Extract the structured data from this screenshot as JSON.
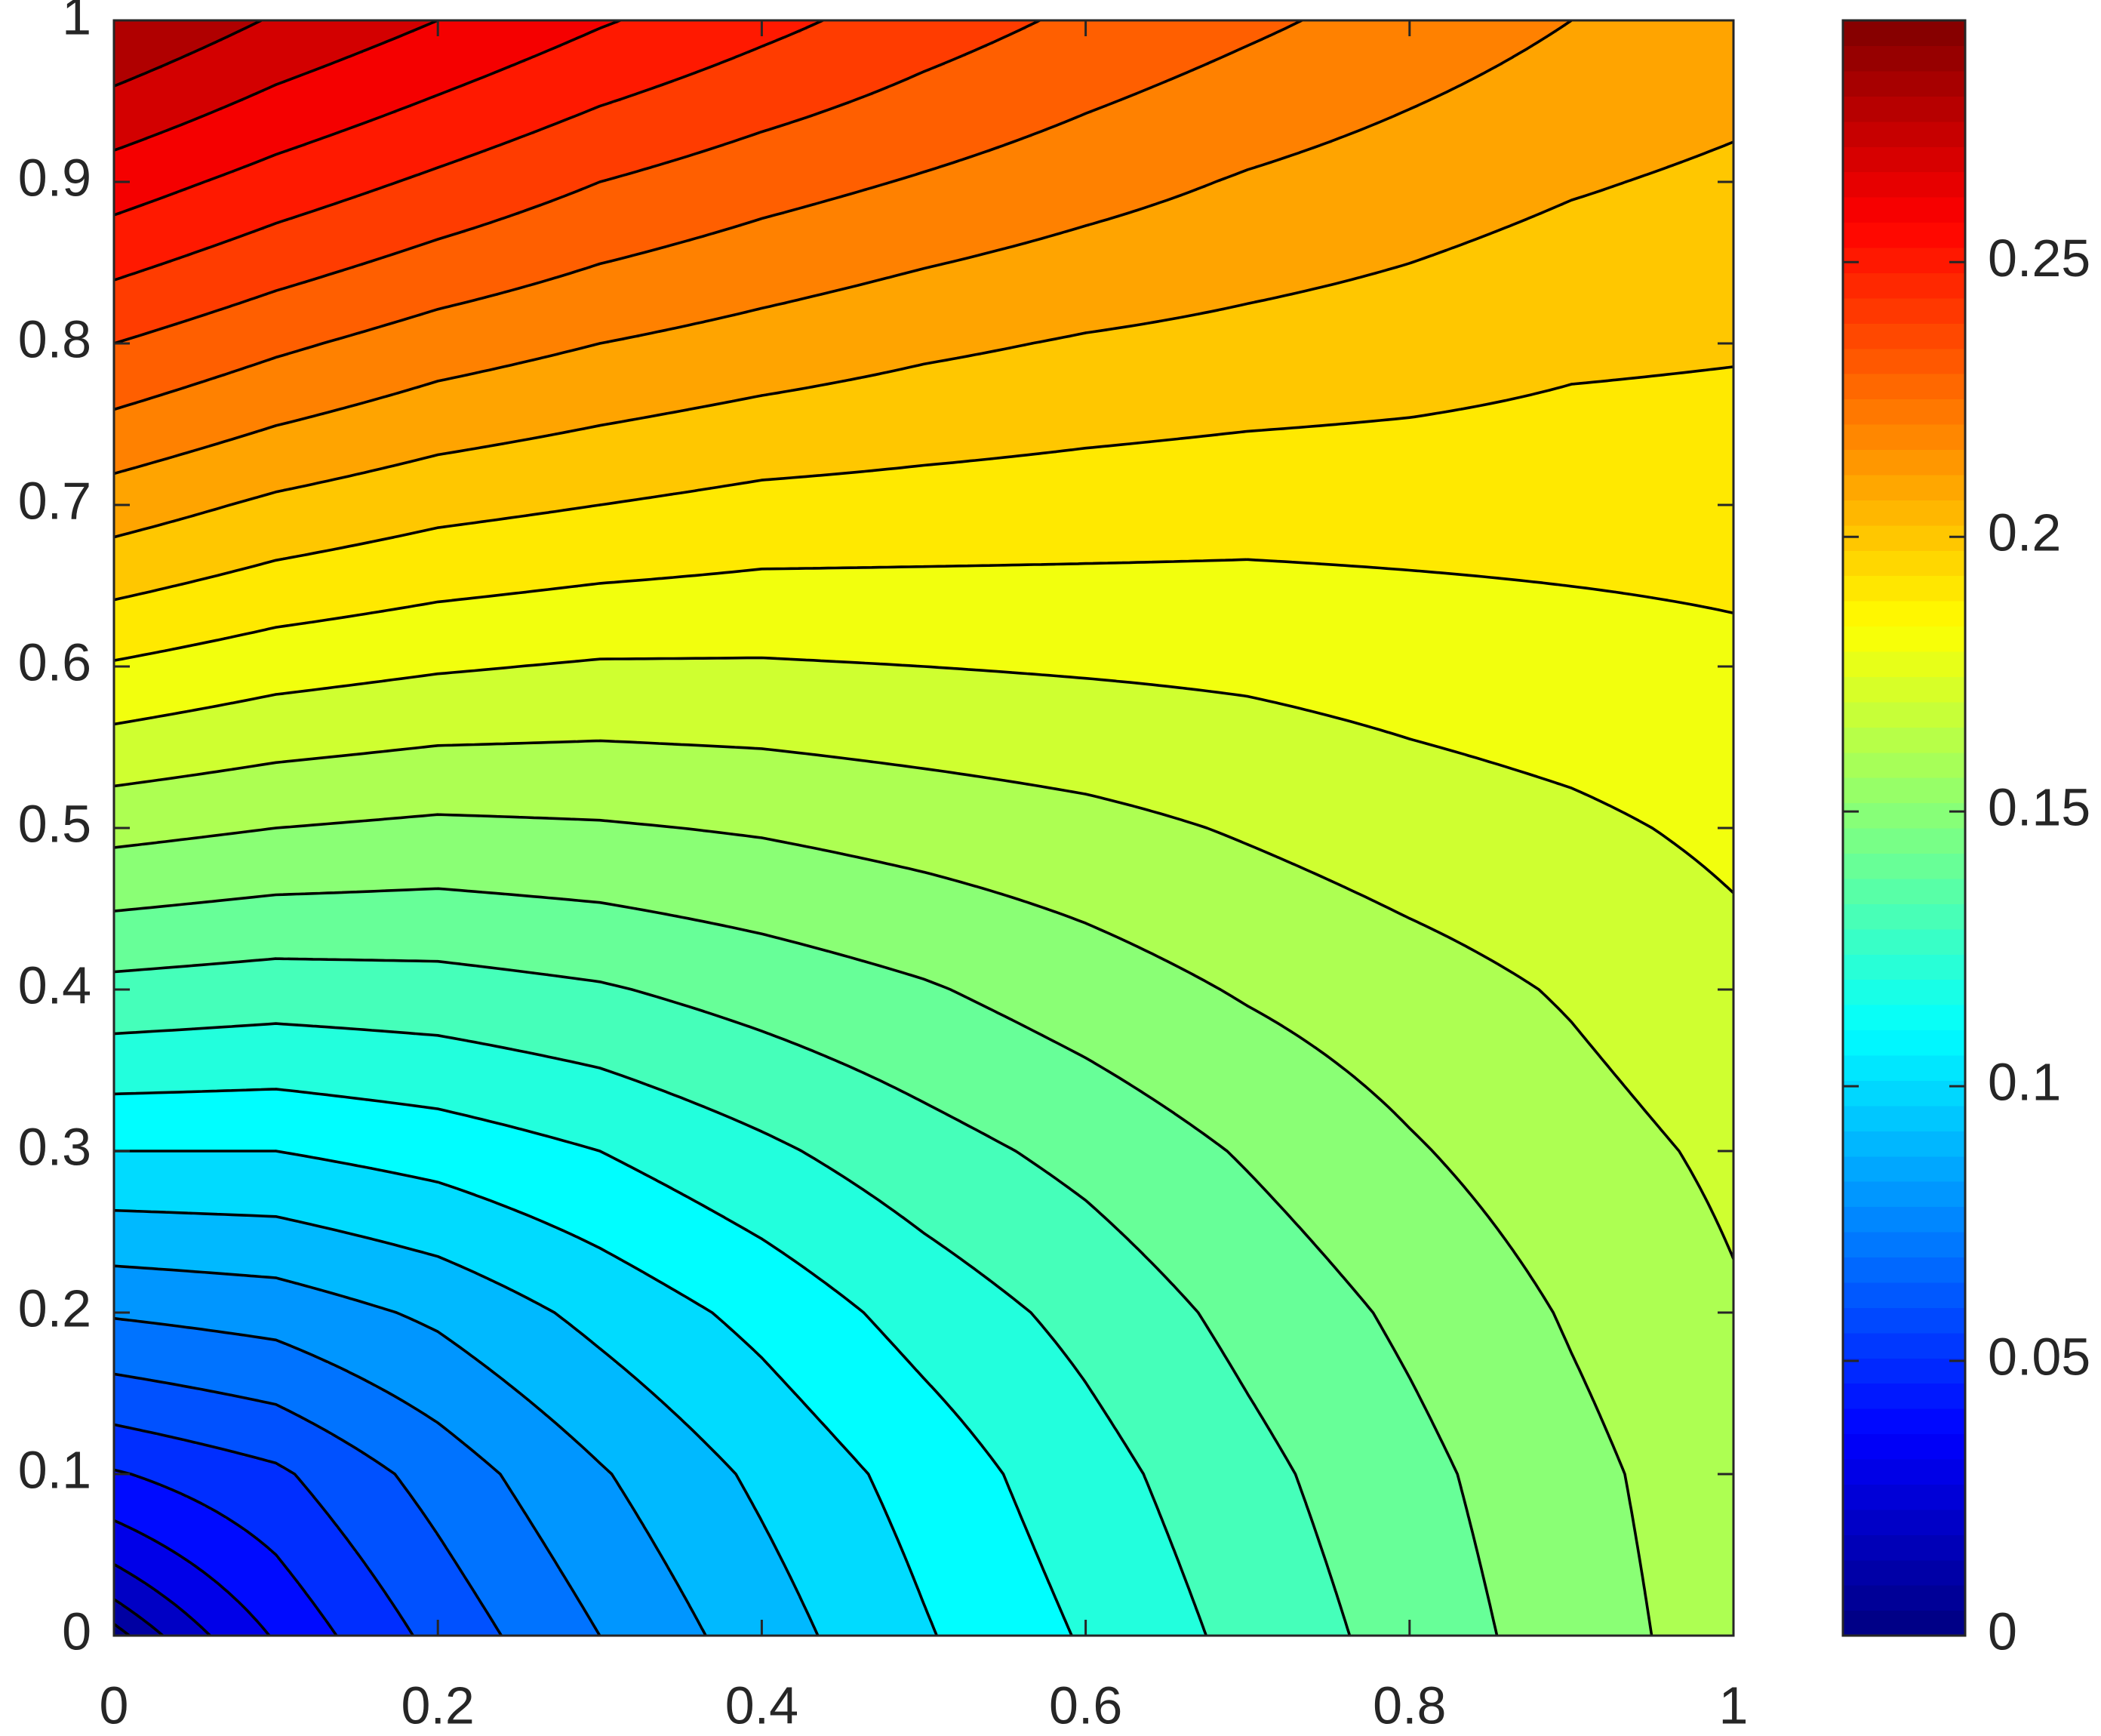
{
  "chart_data": {
    "type": "contour",
    "colormap": "jet",
    "x": [
      0,
      0.1,
      0.2,
      0.3,
      0.4,
      0.5,
      0.6,
      0.7,
      0.8,
      0.9,
      1
    ],
    "y": [
      0,
      0.1,
      0.2,
      0.3,
      0.4,
      0.5,
      0.6,
      0.7,
      0.8,
      0.9,
      1
    ],
    "z": [
      [
        0,
        0.041,
        0.063,
        0.08,
        0.095,
        0.109,
        0.121,
        0.133,
        0.144,
        0.155,
        0.165
      ],
      [
        0.049,
        0.058,
        0.074,
        0.089,
        0.102,
        0.114,
        0.126,
        0.137,
        0.147,
        0.157,
        0.166
      ],
      [
        0.081,
        0.084,
        0.092,
        0.103,
        0.113,
        0.124,
        0.133,
        0.143,
        0.152,
        0.161,
        0.169
      ],
      [
        0.11,
        0.11,
        0.114,
        0.12,
        0.128,
        0.136,
        0.143,
        0.151,
        0.159,
        0.166,
        0.172
      ],
      [
        0.137,
        0.135,
        0.136,
        0.139,
        0.144,
        0.149,
        0.155,
        0.161,
        0.166,
        0.171,
        0.177
      ],
      [
        0.163,
        0.16,
        0.158,
        0.159,
        0.161,
        0.164,
        0.167,
        0.171,
        0.175,
        0.178,
        0.182
      ],
      [
        0.189,
        0.184,
        0.181,
        0.179,
        0.179,
        0.18,
        0.181,
        0.182,
        0.184,
        0.186,
        0.188
      ],
      [
        0.215,
        0.208,
        0.203,
        0.2,
        0.197,
        0.196,
        0.195,
        0.194,
        0.194,
        0.194,
        0.194
      ],
      [
        0.24,
        0.232,
        0.225,
        0.22,
        0.216,
        0.212,
        0.209,
        0.207,
        0.205,
        0.202,
        0.201
      ],
      [
        0.265,
        0.256,
        0.248,
        0.24,
        0.234,
        0.229,
        0.224,
        0.219,
        0.215,
        0.211,
        0.208
      ],
      [
        0.29,
        0.279,
        0.27,
        0.261,
        0.253,
        0.245,
        0.238,
        0.232,
        0.226,
        0.22,
        0.216
      ]
    ],
    "levels": [
      0,
      0.01,
      0.02,
      0.03,
      0.04,
      0.05,
      0.06,
      0.07,
      0.08,
      0.09,
      0.1,
      0.11,
      0.12,
      0.13,
      0.14,
      0.15,
      0.16,
      0.17,
      0.18,
      0.19,
      0.2,
      0.21,
      0.22,
      0.23,
      0.24,
      0.25,
      0.26,
      0.27,
      0.28
    ],
    "xlim": [
      0,
      1
    ],
    "ylim": [
      0,
      1
    ],
    "xticks": [
      0,
      0.2,
      0.4,
      0.6,
      0.8,
      1
    ],
    "yticks": [
      0,
      0.1,
      0.2,
      0.3,
      0.4,
      0.5,
      0.6,
      0.7,
      0.8,
      0.9,
      1
    ],
    "clim": [
      0,
      0.294
    ],
    "cticks": [
      0,
      0.05,
      0.1,
      0.15,
      0.2,
      0.25
    ]
  }
}
